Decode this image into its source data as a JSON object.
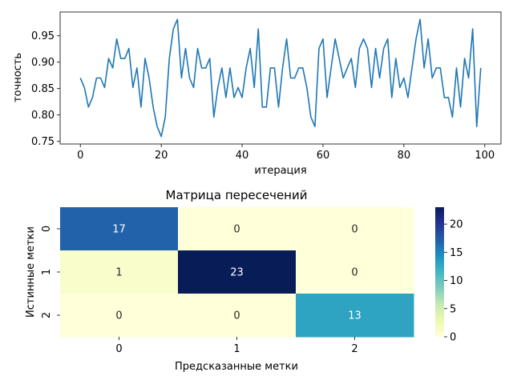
{
  "chart_data": [
    {
      "type": "line",
      "title": "",
      "xlabel": "итерация",
      "ylabel": "точность",
      "xlim": [
        -5,
        104
      ],
      "ylim": [
        0.745,
        0.995
      ],
      "xticks": [
        0,
        20,
        40,
        60,
        80,
        100
      ],
      "xtick_labels": [
        "0",
        "20",
        "40",
        "60",
        "80",
        "100"
      ],
      "yticks": [
        0.75,
        0.8,
        0.85,
        0.9,
        0.95
      ],
      "ytick_labels": [
        "0.75",
        "0.80",
        "0.85",
        "0.90",
        "0.95"
      ],
      "grid": false,
      "color": "#1f77b4",
      "series": [
        {
          "x": [
            0,
            1,
            2,
            3,
            4,
            5,
            6,
            7,
            8,
            9,
            10,
            11,
            12,
            13,
            14,
            15,
            16,
            17,
            18,
            19,
            20,
            21,
            22,
            23,
            24,
            25,
            26,
            27,
            28,
            29,
            30,
            31,
            32,
            33,
            34,
            35,
            36,
            37,
            38,
            39,
            40,
            41,
            42,
            43,
            44,
            45,
            46,
            47,
            48,
            49,
            50,
            51,
            52,
            53,
            54,
            55,
            56,
            57,
            58,
            59,
            60,
            61,
            62,
            63,
            64,
            65,
            66,
            67,
            68,
            69,
            70,
            71,
            72,
            73,
            74,
            75,
            76,
            77,
            78,
            79,
            80,
            81,
            82,
            83,
            84,
            85,
            86,
            87,
            88,
            89,
            90,
            91,
            92,
            93,
            94,
            95,
            96,
            97,
            98,
            99
          ],
          "y": [
            0.87,
            0.852,
            0.815,
            0.833,
            0.87,
            0.87,
            0.852,
            0.907,
            0.889,
            0.944,
            0.907,
            0.907,
            0.926,
            0.852,
            0.889,
            0.815,
            0.907,
            0.87,
            0.815,
            0.778,
            0.759,
            0.796,
            0.907,
            0.963,
            0.981,
            0.87,
            0.926,
            0.87,
            0.852,
            0.926,
            0.889,
            0.889,
            0.907,
            0.796,
            0.852,
            0.889,
            0.833,
            0.889,
            0.833,
            0.852,
            0.833,
            0.889,
            0.926,
            0.852,
            0.963,
            0.815,
            0.815,
            0.889,
            0.889,
            0.815,
            0.889,
            0.944,
            0.87,
            0.87,
            0.889,
            0.889,
            0.852,
            0.796,
            0.778,
            0.926,
            0.944,
            0.833,
            0.889,
            0.944,
            0.907,
            0.87,
            0.889,
            0.907,
            0.852,
            0.926,
            0.944,
            0.926,
            0.852,
            0.926,
            0.87,
            0.926,
            0.944,
            0.833,
            0.907,
            0.852,
            0.87,
            0.833,
            0.889,
            0.944,
            0.981,
            0.889,
            0.944,
            0.87,
            0.889,
            0.889,
            0.833,
            0.833,
            0.796,
            0.889,
            0.815,
            0.907,
            0.87,
            0.963,
            0.778,
            0.889
          ]
        }
      ]
    },
    {
      "type": "heatmap",
      "title": "Матрица пересечений",
      "xlabel": "Предсказанные метки",
      "ylabel": "Истинные метки",
      "x_categories": [
        "0",
        "1",
        "2"
      ],
      "y_categories": [
        "0",
        "1",
        "2"
      ],
      "values": [
        [
          17,
          0,
          0
        ],
        [
          1,
          23,
          0
        ],
        [
          0,
          0,
          13
        ]
      ],
      "colormap": "YlGnBu",
      "vmin": 0,
      "vmax": 23,
      "colorbar_ticks": [
        0,
        5,
        10,
        15,
        20
      ],
      "colorbar_tick_labels": [
        "0",
        "5",
        "10",
        "15",
        "20"
      ],
      "colorbar_stops": [
        "#ffffd9",
        "#edf8b1",
        "#c7e9b4",
        "#7fcdbb",
        "#41b6c4",
        "#1d91c0",
        "#225ea8",
        "#253494",
        "#081d58"
      ]
    }
  ]
}
